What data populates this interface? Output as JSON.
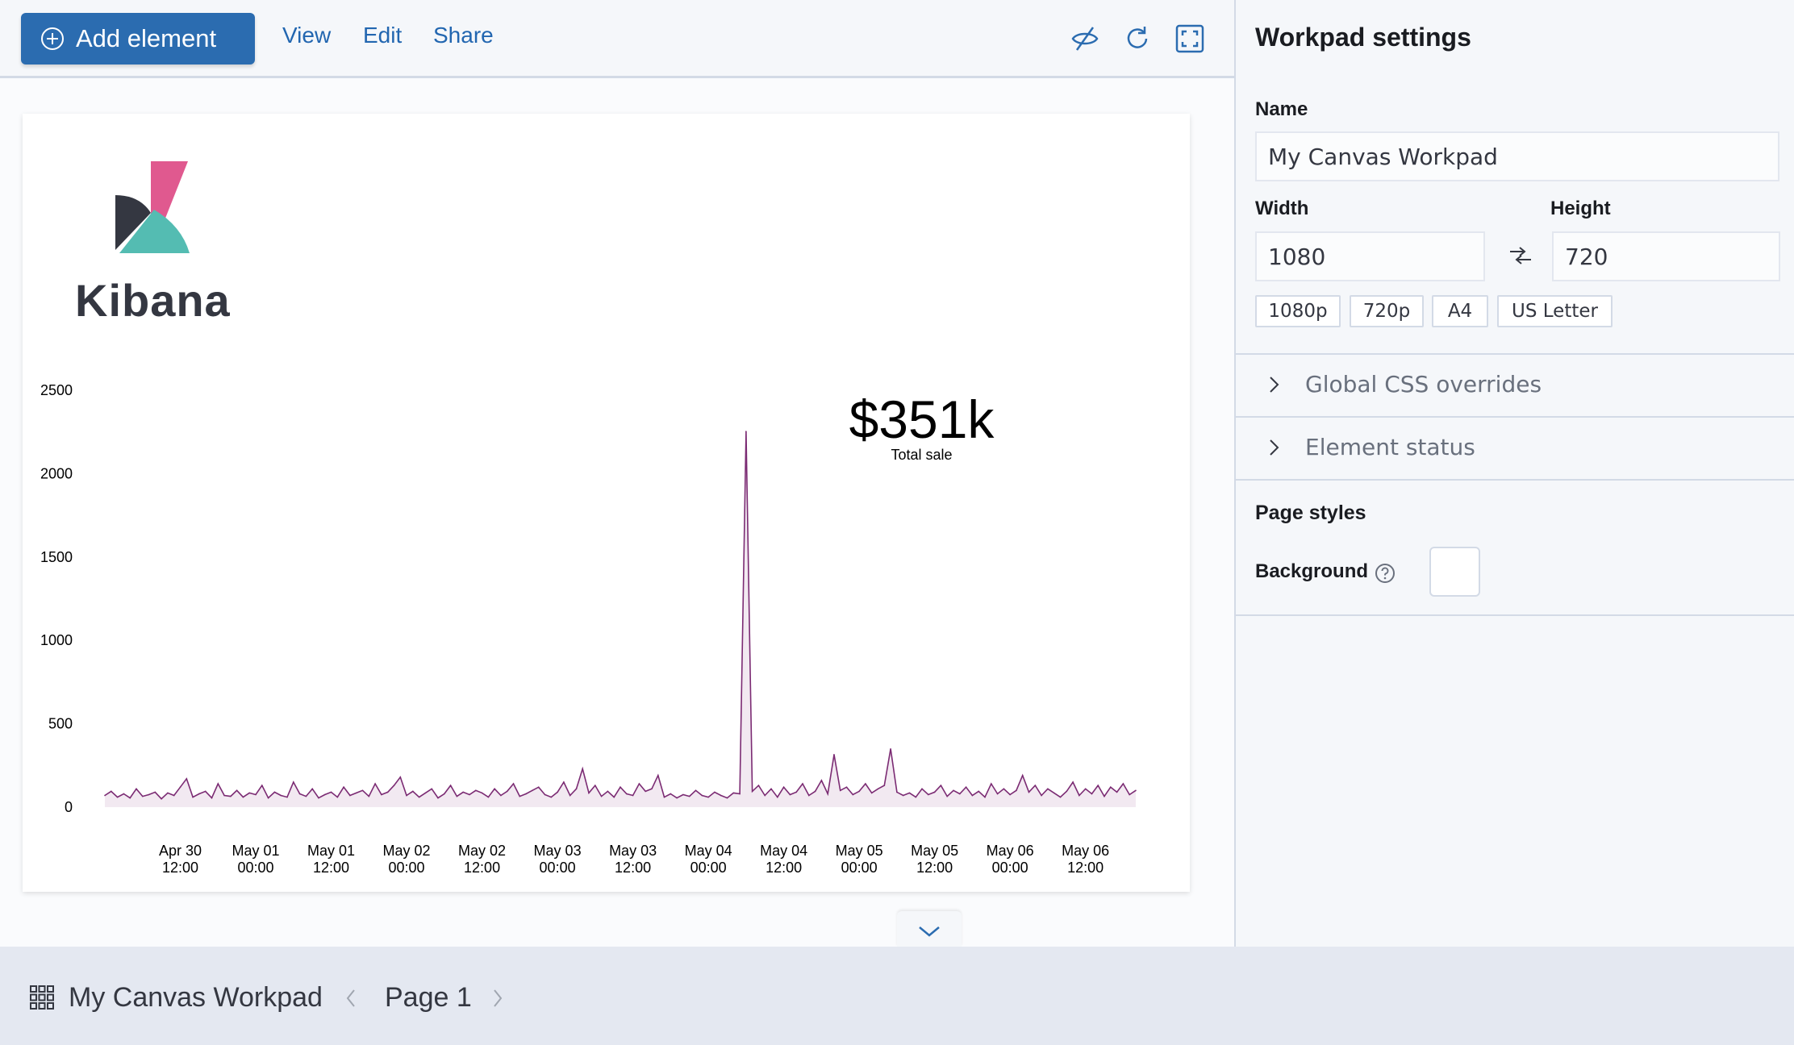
{
  "toolbar": {
    "add_element": "Add element",
    "view": "View",
    "edit": "Edit",
    "share": "Share",
    "icons": [
      "eye-closed-icon",
      "refresh-icon",
      "fullscreen-icon"
    ],
    "accent": "#2b6cb0"
  },
  "canvas": {
    "logo_text": "Kibana",
    "metric": {
      "value": "$351k",
      "label": "Total sale"
    }
  },
  "chart_data": {
    "type": "area",
    "title": "",
    "xlabel": "",
    "ylabel": "",
    "x_start": "Apr 30 00:00",
    "x_end": "May 06 20:00",
    "x_interval": "1 hour",
    "ylim": [
      0,
      2500
    ],
    "yticks": [
      "0",
      "500",
      "1000",
      "1500",
      "2000",
      "2500"
    ],
    "xticks": [
      [
        "Apr 30",
        "12:00"
      ],
      [
        "May 01",
        "00:00"
      ],
      [
        "May 01",
        "12:00"
      ],
      [
        "May 02",
        "00:00"
      ],
      [
        "May 02",
        "12:00"
      ],
      [
        "May 03",
        "00:00"
      ],
      [
        "May 03",
        "12:00"
      ],
      [
        "May 04",
        "00:00"
      ],
      [
        "May 04",
        "12:00"
      ],
      [
        "May 05",
        "00:00"
      ],
      [
        "May 05",
        "12:00"
      ],
      [
        "May 06",
        "00:00"
      ],
      [
        "May 06",
        "12:00"
      ]
    ],
    "grid": false,
    "color": "#7b2b73",
    "values": [
      70,
      95,
      60,
      80,
      55,
      110,
      65,
      75,
      90,
      50,
      85,
      70,
      120,
      170,
      60,
      80,
      95,
      55,
      140,
      70,
      65,
      100,
      60,
      85,
      75,
      130,
      55,
      90,
      70,
      60,
      150,
      80,
      65,
      110,
      55,
      75,
      90,
      60,
      120,
      70,
      85,
      100,
      65,
      140,
      75,
      90,
      130,
      180,
      70,
      95,
      60,
      85,
      110,
      55,
      80,
      130,
      65,
      90,
      75,
      100,
      85,
      60,
      110,
      70,
      95,
      140,
      65,
      80,
      100,
      120,
      75,
      60,
      90,
      150,
      70,
      110,
      230,
      85,
      130,
      65,
      95,
      60,
      120,
      80,
      70,
      140,
      95,
      110,
      190,
      60,
      80,
      55,
      75,
      65,
      100,
      70,
      60,
      90,
      70,
      55,
      85,
      80,
      2253,
      95,
      130,
      70,
      110,
      60,
      120,
      75,
      90,
      140,
      70,
      95,
      160,
      80,
      315,
      100,
      120,
      75,
      95,
      140,
      85,
      110,
      130,
      349,
      90,
      70,
      85,
      60,
      110,
      75,
      90,
      130,
      65,
      100,
      80,
      120,
      70,
      95,
      60,
      140,
      80,
      110,
      75,
      100,
      190,
      90,
      130,
      70,
      110,
      85,
      60,
      95,
      150,
      70,
      110,
      80,
      130,
      65,
      120,
      90,
      140,
      75,
      100
    ]
  },
  "footer": {
    "workpad_name": "My Canvas Workpad",
    "page": "Page 1"
  },
  "panel": {
    "title": "Workpad settings",
    "name_label": "Name",
    "name_value": "My Canvas Workpad",
    "width_label": "Width",
    "width_value": "1080",
    "height_label": "Height",
    "height_value": "720",
    "presets": [
      "1080p",
      "720p",
      "A4",
      "US Letter"
    ],
    "accordions": [
      "Global CSS overrides",
      "Element status"
    ],
    "page_styles": "Page styles",
    "background_label": "Background",
    "background_color": "#ffffff"
  }
}
